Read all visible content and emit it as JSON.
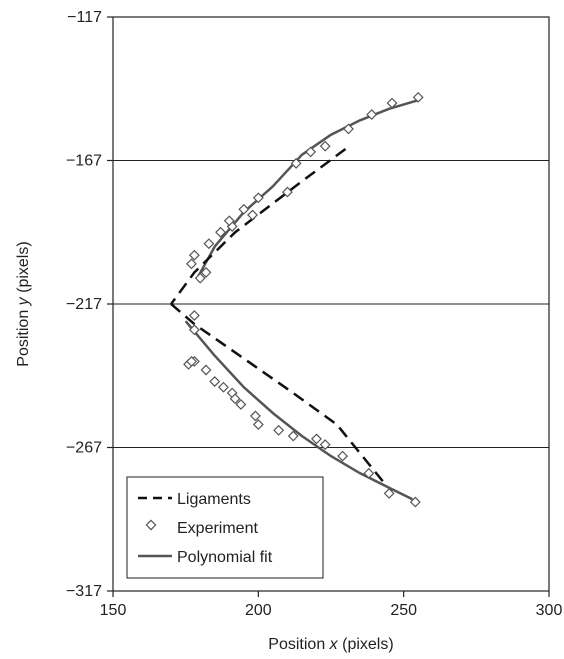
{
  "chart_data": {
    "type": "scatter",
    "title": "",
    "xlabel": {
      "pre": "Position ",
      "var": "x",
      "post": " (pixels)"
    },
    "ylabel": {
      "pre": "Position ",
      "var": "y",
      "post": " (pixels)"
    },
    "xlim": [
      150,
      300
    ],
    "ylim": [
      -317,
      -117
    ],
    "xticks": [
      150,
      200,
      250,
      300
    ],
    "yticks": [
      -117,
      -167,
      -217,
      -267,
      -317
    ],
    "xtick_labels": [
      "150",
      "200",
      "250",
      "300"
    ],
    "ytick_labels": [
      "−117",
      "−167",
      "−217",
      "−267",
      "−317"
    ],
    "grid": {
      "horizontal": true,
      "vertical": false
    },
    "legend": {
      "placement": "bottom-left",
      "entries": [
        "Ligaments",
        "Experiment",
        "Polynomial fit"
      ]
    },
    "colors": {
      "ligaments": "#111111",
      "experiment": "#555555",
      "fit": "#555555"
    },
    "series": [
      {
        "name": "Ligaments",
        "style": "dashed",
        "segments": [
          {
            "x": [
              230,
              214,
              192,
              178,
              170
            ],
            "y": [
              -163,
              -175,
              -192,
              -206,
              -217
            ]
          },
          {
            "x": [
              170,
              178,
              195,
              212,
              227,
              243
            ],
            "y": [
              -217,
              -224,
              -236,
              -248,
              -259,
              -279
            ]
          }
        ]
      },
      {
        "name": "Experiment",
        "style": "markers",
        "x": [
          255,
          246,
          239,
          231,
          223,
          218,
          213,
          210,
          200,
          198,
          195,
          191,
          190,
          187,
          183,
          178,
          177,
          182,
          180,
          178,
          178,
          178,
          176,
          177,
          182,
          185,
          188,
          191,
          192,
          194,
          199,
          200,
          207,
          212,
          220,
          223,
          229,
          238,
          245,
          254
        ],
        "y": [
          -145,
          -147,
          -151,
          -156,
          -162,
          -164,
          -168,
          -178,
          -180,
          -186,
          -184,
          -190,
          -188,
          -192,
          -196,
          -200,
          -203,
          -206,
          -208,
          -221,
          -226,
          -237,
          -238,
          -237,
          -240,
          -244,
          -246,
          -248,
          -250,
          -252,
          -256,
          -259,
          -261,
          -263,
          -264,
          -266,
          -270,
          -276,
          -283,
          -286
        ]
      },
      {
        "name": "Polynomial fit",
        "style": "solid",
        "segments": [
          {
            "x": [
              179,
              185,
              195,
              205,
              215,
              225,
              235,
              245,
              255
            ],
            "y": [
              -208,
              -197,
              -185,
              -176,
              -165,
              -158,
              -153,
              -149,
              -146
            ]
          },
          {
            "x": [
              175,
              185,
              195,
              205,
              215,
              225,
              235,
              245,
              253
            ],
            "y": [
              -223,
              -235,
              -246,
              -255,
              -263,
              -270,
              -276,
              -281,
              -285
            ]
          }
        ]
      }
    ]
  }
}
